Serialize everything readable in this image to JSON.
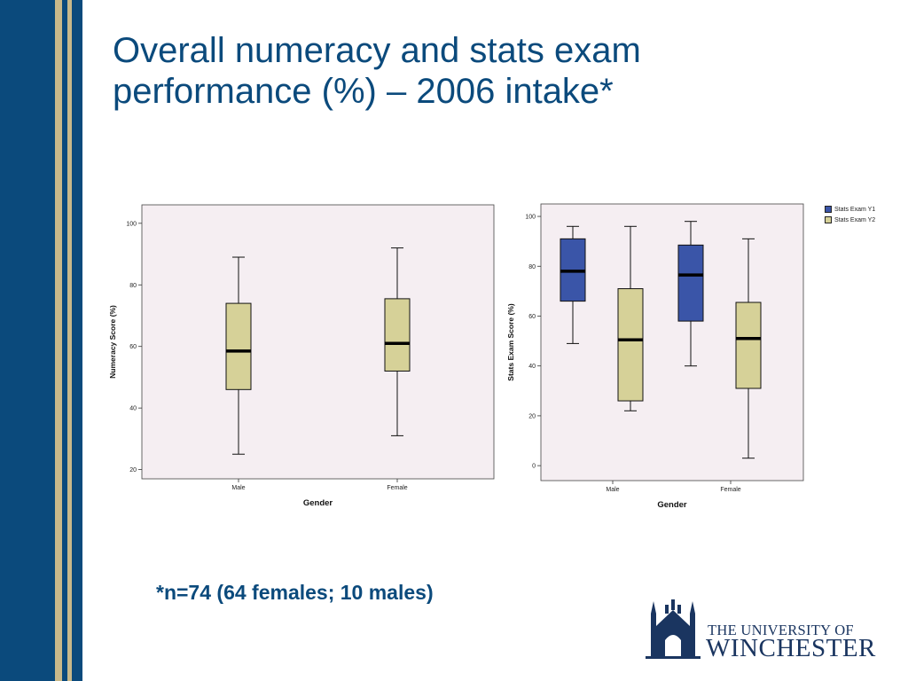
{
  "slide": {
    "title": "Overall numeracy and stats exam performance (%) – 2006 intake*",
    "footnote": "*n=74 (64 females; 10 males)"
  },
  "logo": {
    "line1": "THE UNIVERSITY OF",
    "line2": "WINCHESTER"
  },
  "colors": {
    "title": "#0b4a7c",
    "sidebar_blue": "#0b4a7c",
    "sidebar_gold": "#c9b98a",
    "plot_bg": "#f5eef2",
    "box_tan": "#d6d198",
    "box_blue": "#3a55a8"
  },
  "chart_data": [
    {
      "type": "boxplot",
      "title": "",
      "xlabel": "Gender",
      "ylabel": "Numeracy Score (%)",
      "ylim": [
        17,
        106
      ],
      "yticks": [
        20,
        40,
        60,
        80,
        100
      ],
      "categories": [
        "Male",
        "Female"
      ],
      "series": [
        {
          "color": "#d6d198",
          "boxes": [
            {
              "min": 25,
              "q1": 46,
              "median": 58.5,
              "q3": 74,
              "max": 89
            },
            {
              "min": 31,
              "q1": 52,
              "median": 61,
              "q3": 75.5,
              "max": 92
            }
          ]
        }
      ],
      "grid": false
    },
    {
      "type": "boxplot",
      "title": "",
      "xlabel": "Gender",
      "ylabel": "Stats Exam Score (%)",
      "ylim": [
        -6,
        105
      ],
      "yticks": [
        0,
        20,
        40,
        60,
        80,
        100
      ],
      "categories": [
        "Male",
        "Female"
      ],
      "series": [
        {
          "name": "Stats Exam Y1",
          "color": "#3a55a8",
          "boxes": [
            {
              "min": 49,
              "q1": 66,
              "median": 78,
              "q3": 91,
              "max": 96
            },
            {
              "min": 40,
              "q1": 58,
              "median": 76.5,
              "q3": 88.5,
              "max": 98
            }
          ]
        },
        {
          "name": "Stats Exam Y2",
          "color": "#d6d198",
          "boxes": [
            {
              "min": 22,
              "q1": 26,
              "median": 50.5,
              "q3": 71,
              "max": 96
            },
            {
              "min": 3,
              "q1": 31,
              "median": 51,
              "q3": 65.5,
              "max": 91
            }
          ]
        }
      ],
      "legend_position": "top-right",
      "grid": false
    }
  ]
}
